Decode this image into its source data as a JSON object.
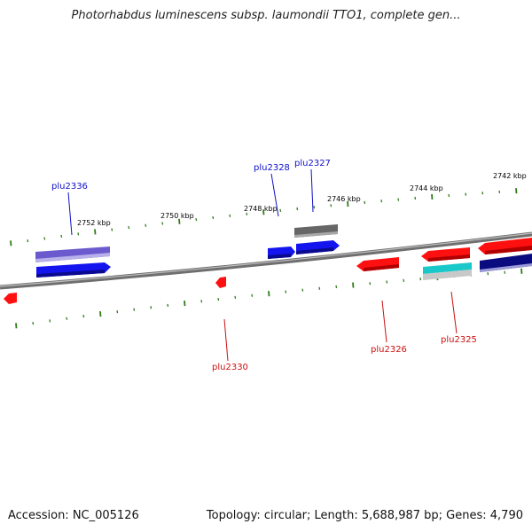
{
  "title": "Photorhabdus luminescens subsp. laumondii TTO1, complete gen...",
  "footer": {
    "accession": "Accession: NC_005126",
    "summary": "Topology: circular; Length: 5,688,987 bp; Genes: 4,790"
  },
  "colors": {
    "backbone": "#888888",
    "tick": "#2f7d1a",
    "label_forward": "#1010c8",
    "label_reverse": "#cc1010",
    "gene_red": "#ff1010",
    "gene_blue": "#1414ee",
    "gene_purple": "#6a5acd",
    "gene_gray": "#666666",
    "gene_cyan": "#19c8c8",
    "gene_navy": "#0b0b80"
  },
  "scale_labels": [
    "2752 kbp",
    "2750 kbp",
    "2748 kbp",
    "2746 kbp",
    "2744 kbp",
    "2742 kbp"
  ],
  "gene_labels": [
    "plu2336",
    "plu2328",
    "plu2327",
    "plu2330",
    "plu2326",
    "plu2325"
  ]
}
